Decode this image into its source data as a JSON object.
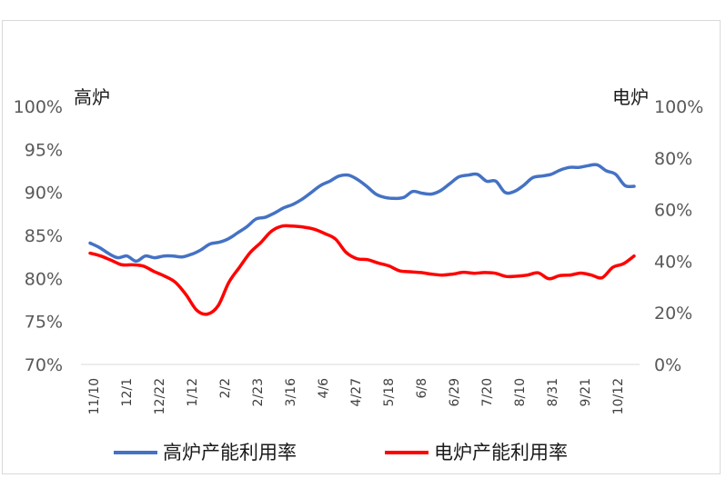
{
  "chart_data": {
    "type": "line",
    "left_axis_label": "高炉",
    "right_axis_label": "电炉",
    "y_left": {
      "min": 70,
      "max": 100,
      "ticks": [
        "70%",
        "75%",
        "80%",
        "85%",
        "90%",
        "95%",
        "100%"
      ]
    },
    "y_right": {
      "min": 0,
      "max": 100,
      "ticks": [
        "0%",
        "20%",
        "40%",
        "60%",
        "80%",
        "100%"
      ]
    },
    "x_ticks": [
      "11/10",
      "12/1",
      "12/22",
      "1/12",
      "2/2",
      "2/23",
      "3/16",
      "4/6",
      "4/27",
      "5/18",
      "6/8",
      "6/29",
      "7/20",
      "8/10",
      "8/31",
      "9/21",
      "10/12"
    ],
    "series": [
      {
        "name": "高炉产能利用率",
        "axis": "left",
        "color": "#4472c4",
        "values": [
          84.1,
          83.6,
          82.9,
          82.4,
          82.6,
          82.0,
          82.6,
          82.4,
          82.6,
          82.6,
          82.5,
          82.8,
          83.3,
          84.0,
          84.2,
          84.6,
          85.3,
          86.0,
          86.9,
          87.1,
          87.6,
          88.2,
          88.6,
          89.2,
          90.0,
          90.8,
          91.3,
          91.9,
          92.0,
          91.5,
          90.7,
          89.8,
          89.4,
          89.3,
          89.4,
          90.1,
          89.9,
          89.8,
          90.2,
          91.0,
          91.8,
          92.0,
          92.1,
          91.3,
          91.3,
          90.0,
          90.1,
          90.8,
          91.7,
          91.9,
          92.1,
          92.6,
          92.9,
          92.9,
          93.1,
          93.2,
          92.5,
          92.1,
          90.8,
          90.7
        ]
      },
      {
        "name": "电炉产能利用率",
        "axis": "right",
        "color": "#ff0000",
        "values": [
          43.1,
          42.0,
          40.3,
          38.6,
          38.6,
          38.1,
          36.0,
          34.2,
          31.8,
          27.0,
          21.0,
          19.5,
          22.7,
          31.7,
          37.6,
          43.3,
          47.2,
          51.6,
          53.6,
          53.6,
          53.2,
          52.4,
          50.7,
          48.6,
          43.4,
          41.0,
          40.6,
          39.3,
          38.2,
          36.3,
          35.9,
          35.6,
          35.0,
          34.6,
          35.0,
          35.7,
          35.3,
          35.6,
          35.3,
          34.1,
          34.2,
          34.6,
          35.5,
          33.2,
          34.4,
          34.6,
          35.4,
          34.6,
          33.6,
          37.6,
          39.0,
          42.0
        ]
      }
    ]
  }
}
